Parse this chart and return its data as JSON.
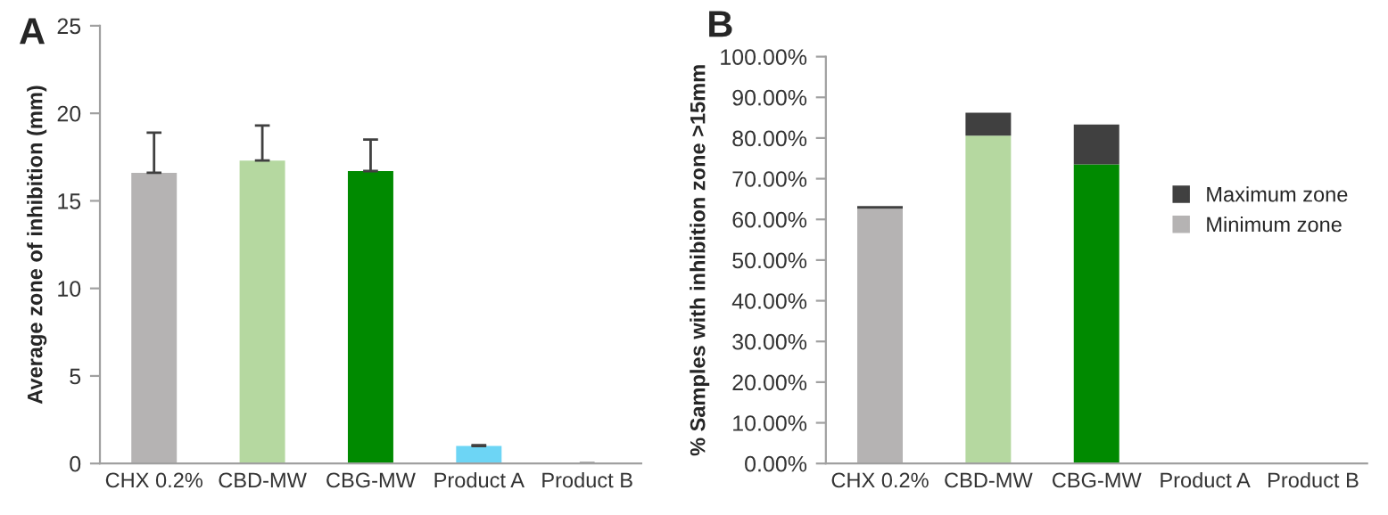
{
  "chart_data": [
    {
      "type": "bar",
      "title": "A",
      "ylabel": "Average zone of inhibition (mm)",
      "categories": [
        "CHX 0.2%",
        "CBD-MW",
        "CBG-MW",
        "Product A",
        "Product B"
      ],
      "values": [
        16.6,
        17.3,
        16.7,
        1.0,
        0
      ],
      "colors": [
        "#b5b3b3",
        "#b5d8a0",
        "#008a00",
        "#6dd5f5",
        "#6dd5f5"
      ],
      "errors": [
        2.3,
        2.0,
        1.8,
        0.05,
        null
      ],
      "ylim": [
        0,
        25
      ],
      "yticks": [
        0,
        5,
        10,
        15,
        20,
        25
      ],
      "grid": false,
      "legend": false
    },
    {
      "type": "bar",
      "title": "B",
      "ylabel": "% Samples with inhibition zone >15mm",
      "categories": [
        "CHX 0.2%",
        "CBD-MW",
        "CBG-MW",
        "Product A",
        "Product B"
      ],
      "stacked": true,
      "series": [
        {
          "name": "Minimum zone",
          "colors": [
            "#b5b3b3",
            "#b5d8a0",
            "#008a00",
            "#6dd5f5",
            "#6dd5f5"
          ],
          "values": [
            62.6,
            80.6,
            73.5,
            0,
            0
          ]
        },
        {
          "name": "Maximum zone",
          "color": "#404040",
          "values": [
            0.7,
            5.6,
            9.8,
            0,
            0
          ]
        }
      ],
      "ylim": [
        0,
        100
      ],
      "yticks": [
        {
          "value": 0,
          "label": "0.00%"
        },
        {
          "value": 10,
          "label": "10.00%"
        },
        {
          "value": 20,
          "label": "20.00%"
        },
        {
          "value": 30,
          "label": "30.00%"
        },
        {
          "value": 40,
          "label": "40.00%"
        },
        {
          "value": 50,
          "label": "50.00%"
        },
        {
          "value": 60,
          "label": "60.00%"
        },
        {
          "value": 70,
          "label": "70.00%"
        },
        {
          "value": 80,
          "label": "80.00%"
        },
        {
          "value": 90,
          "label": "90.00%"
        },
        {
          "value": 100,
          "label": "100.00%"
        }
      ],
      "grid": false,
      "legend": "right"
    }
  ]
}
